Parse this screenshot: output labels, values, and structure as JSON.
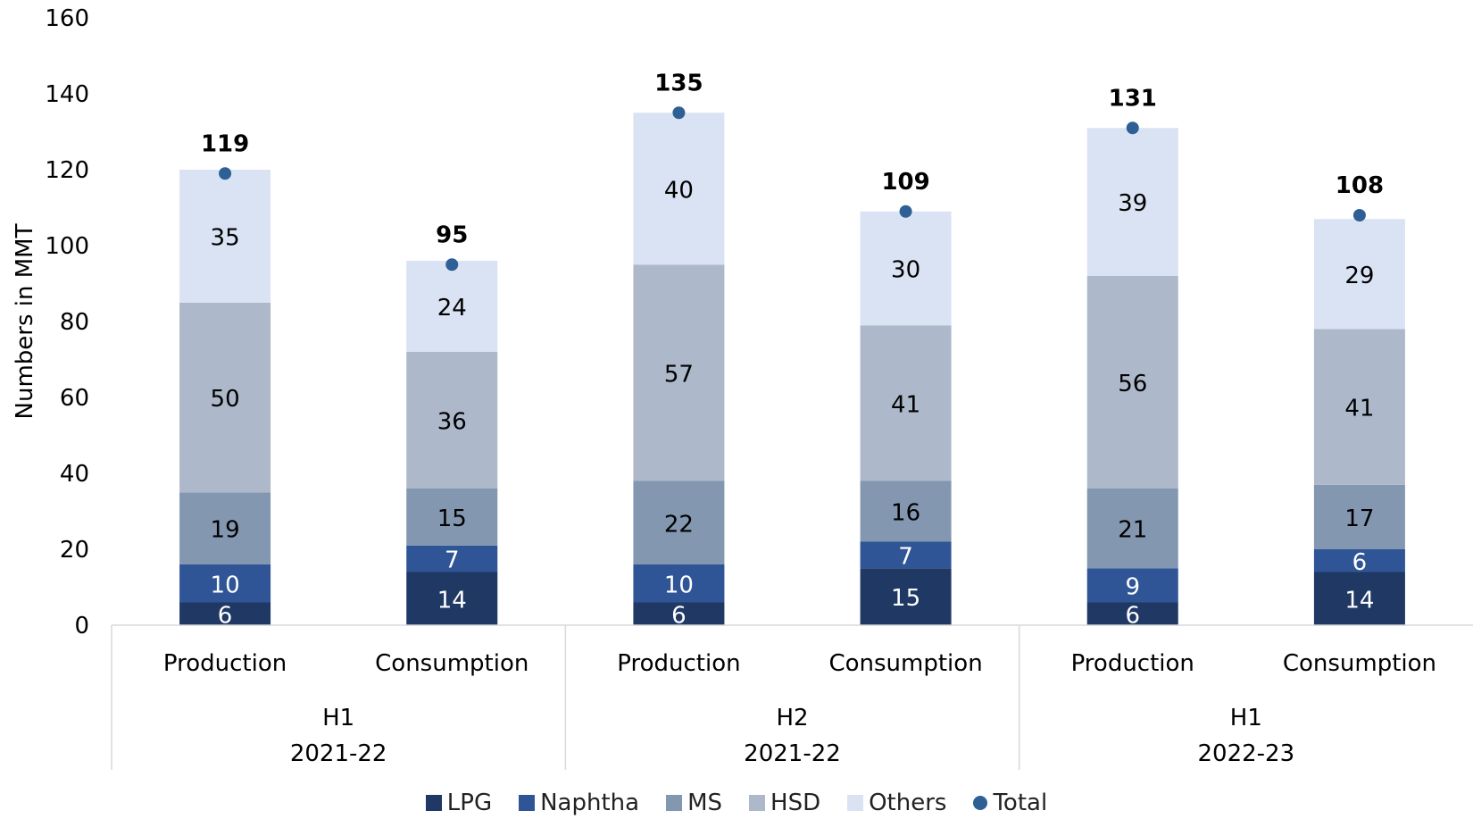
{
  "chart_data": {
    "type": "bar",
    "stacked": true,
    "ylabel": "Numbers in MMT",
    "ylim": [
      0,
      160
    ],
    "yticks": [
      0,
      20,
      40,
      60,
      80,
      100,
      120,
      140,
      160
    ],
    "categories": [
      "Production",
      "Consumption",
      "Production",
      "Consumption",
      "Production",
      "Consumption"
    ],
    "groups": [
      {
        "line1": "H1",
        "line2": "2021-22"
      },
      {
        "line1": "H2",
        "line2": "2021-22"
      },
      {
        "line1": "H1",
        "line2": "2022-23"
      }
    ],
    "series": [
      {
        "name": "LPG",
        "color": "#1f3864",
        "label_color": "#ffffff",
        "values": [
          6,
          14,
          6,
          15,
          6,
          14
        ]
      },
      {
        "name": "Naphtha",
        "color": "#2f5597",
        "label_color": "#ffffff",
        "values": [
          10,
          7,
          10,
          7,
          9,
          6
        ]
      },
      {
        "name": "MS",
        "color": "#8497b0",
        "label_color": "#000000",
        "values": [
          19,
          15,
          22,
          16,
          21,
          17
        ]
      },
      {
        "name": "HSD",
        "color": "#adb9ca",
        "label_color": "#000000",
        "values": [
          50,
          36,
          57,
          41,
          56,
          41
        ]
      },
      {
        "name": "Others",
        "color": "#dae3f3",
        "label_color": "#000000",
        "values": [
          35,
          24,
          40,
          30,
          39,
          29
        ]
      }
    ],
    "total": {
      "name": "Total",
      "color": "#2e6096",
      "values": [
        119,
        95,
        135,
        109,
        131,
        108
      ]
    },
    "legend_position": "bottom"
  }
}
